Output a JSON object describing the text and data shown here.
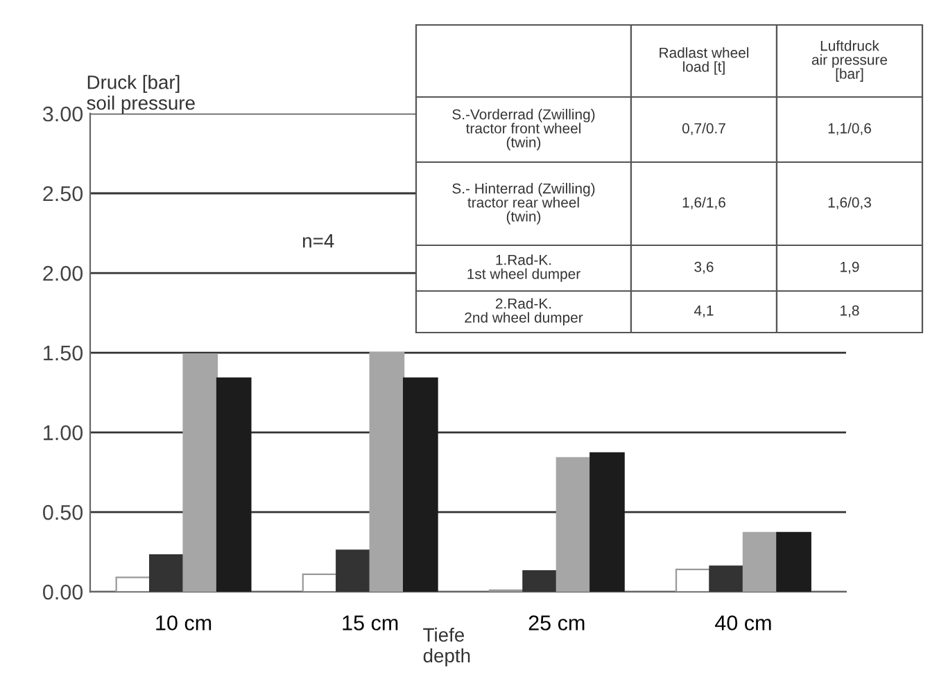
{
  "chart_data": {
    "type": "bar",
    "ylabel": "Druck [bar]\nsoil pressure",
    "xlabel": "Tiefe\ndepth",
    "categories": [
      "10 cm",
      "15 cm",
      "25 cm",
      "40 cm"
    ],
    "series": [
      {
        "color": "#ffffff",
        "values": [
          0.09,
          0.11,
          0.01,
          0.14
        ]
      },
      {
        "color": "#333333",
        "values": [
          0.23,
          0.26,
          0.13,
          0.16
        ]
      },
      {
        "color": "#a6a6a6",
        "values": [
          1.49,
          1.5,
          0.84,
          0.37
        ]
      },
      {
        "color": "#1c1c1c",
        "values": [
          1.34,
          1.34,
          0.87,
          0.37
        ]
      }
    ],
    "ylim": [
      0,
      3.0
    ],
    "yticks": [
      {
        "value": 0,
        "label": "0.00"
      },
      {
        "value": 0.5,
        "label": "0.50"
      },
      {
        "value": 1.0,
        "label": "1.00"
      },
      {
        "value": 1.5,
        "label": "1.50"
      },
      {
        "value": 2.0,
        "label": "2.00"
      },
      {
        "value": 2.5,
        "label": "2.50"
      },
      {
        "value": 3.0,
        "label": "3.00"
      }
    ],
    "grid": "y",
    "annotations": [
      "n=4",
      "Radlast wheel\nload [t]",
      "Luftdruck\nair pressure\n[bar]",
      "S.-Vorderrad (Zwilling)\ntractor front wheel\n(twin)",
      "0,7/0.7",
      "1,1/0,6",
      "S.- Hinterrad (Zwilling)\ntractor rear wheel\n(twin)",
      "1,6/1,6",
      "1,6/0,3",
      "1.Rad-K.\n1st wheel dumper",
      "3,6",
      "1,9",
      "2.Rad-K.\n2nd wheel dumper",
      "4,1",
      "1,8"
    ]
  }
}
